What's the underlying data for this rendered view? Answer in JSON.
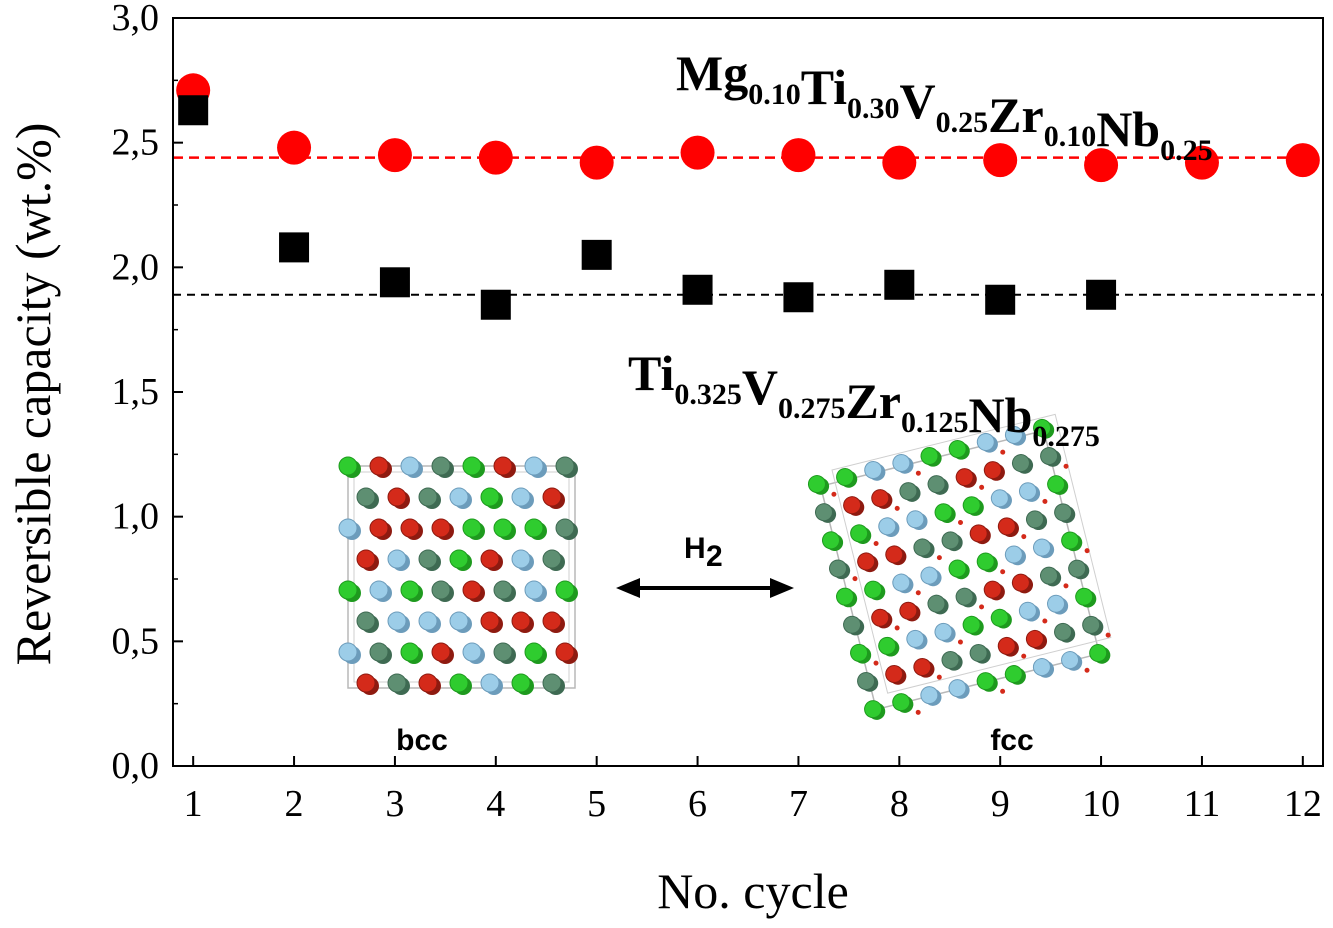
{
  "chart_data": {
    "type": "scatter",
    "xlabel": "No. cycle",
    "ylabel": "Reversible capacity (wt.%)",
    "xlim": [
      0.8,
      12.2
    ],
    "ylim": [
      0,
      3
    ],
    "x_ticks": [
      "1",
      "2",
      "3",
      "4",
      "5",
      "6",
      "7",
      "8",
      "9",
      "10",
      "11",
      "12"
    ],
    "y_ticks": [
      "0,0",
      "0,5",
      "1,0",
      "1,5",
      "2,0",
      "2,5",
      "3,0"
    ],
    "grid": false,
    "series": [
      {
        "name": "Mg0.10Ti0.30V0.25Zr0.10Nb0.25",
        "marker": "circle",
        "color": "#ff0000",
        "x": [
          1,
          2,
          3,
          4,
          5,
          6,
          7,
          8,
          9,
          10,
          11,
          12
        ],
        "y": [
          2.71,
          2.48,
          2.45,
          2.44,
          2.42,
          2.46,
          2.45,
          2.42,
          2.43,
          2.41,
          2.42,
          2.43
        ],
        "mean_line": 2.44
      },
      {
        "name": "Ti0.325V0.275Zr0.125Nb0.275",
        "marker": "square",
        "color": "#000000",
        "x": [
          1,
          2,
          3,
          4,
          5,
          6,
          7,
          8,
          9,
          10
        ],
        "y": [
          2.63,
          2.08,
          1.94,
          1.85,
          2.05,
          1.91,
          1.88,
          1.93,
          1.87,
          1.89
        ],
        "mean_line": 1.89
      }
    ],
    "labels": {
      "red": [
        {
          "t": "Mg",
          "s": false
        },
        {
          "t": "0.10",
          "s": true
        },
        {
          "t": "Ti",
          "s": false
        },
        {
          "t": "0.30",
          "s": true
        },
        {
          "t": "V",
          "s": false
        },
        {
          "t": "0.25",
          "s": true
        },
        {
          "t": "Zr",
          "s": false
        },
        {
          "t": "0.10",
          "s": true
        },
        {
          "t": "Nb",
          "s": false
        },
        {
          "t": "0.25",
          "s": true
        }
      ],
      "black": [
        {
          "t": "Ti",
          "s": false
        },
        {
          "t": "0.325",
          "s": true
        },
        {
          "t": "V",
          "s": false
        },
        {
          "t": "0.275",
          "s": true
        },
        {
          "t": "Zr",
          "s": false
        },
        {
          "t": "0.125",
          "s": true
        },
        {
          "t": "Nb",
          "s": false
        },
        {
          "t": "0.275",
          "s": true
        }
      ]
    },
    "inset": {
      "left_label": "bcc",
      "right_label": "fcc",
      "arrow_label": "H",
      "arrow_label_sub": "2",
      "atom_colors": [
        "#2fcc2f",
        "#d42a1a",
        "#9ccde8",
        "#5e8f72"
      ]
    }
  }
}
